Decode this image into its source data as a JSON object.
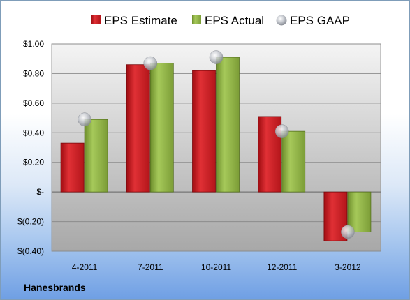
{
  "chart_data": {
    "type": "bar",
    "title": "",
    "xlabel": "",
    "ylabel": "",
    "company": "Hanesbrands",
    "categories": [
      "4-2011",
      "7-2011",
      "10-2011",
      "12-2011",
      "3-2012"
    ],
    "series": [
      {
        "name": "EPS Estimate",
        "type": "bar",
        "color": "#c0171c",
        "values": [
          0.33,
          0.86,
          0.82,
          0.51,
          -0.33
        ]
      },
      {
        "name": "EPS Actual",
        "type": "bar",
        "color": "#8db043",
        "values": [
          0.49,
          0.87,
          0.91,
          0.41,
          -0.27
        ]
      },
      {
        "name": "EPS GAAP",
        "type": "marker",
        "color": "#b8bcc4",
        "values": [
          0.49,
          0.87,
          0.91,
          0.41,
          -0.27
        ]
      }
    ],
    "ylim": [
      -0.4,
      1.0
    ],
    "yticks": [
      {
        "value": 1.0,
        "label": "$1.00"
      },
      {
        "value": 0.8,
        "label": "$0.80"
      },
      {
        "value": 0.6,
        "label": "$0.60"
      },
      {
        "value": 0.4,
        "label": "$0.40"
      },
      {
        "value": 0.2,
        "label": "$0.20"
      },
      {
        "value": 0.0,
        "label": "$-"
      },
      {
        "value": -0.2,
        "label": "$(0.20)"
      },
      {
        "value": -0.4,
        "label": "$(0.40)"
      }
    ],
    "grid": true,
    "legend": "top"
  }
}
